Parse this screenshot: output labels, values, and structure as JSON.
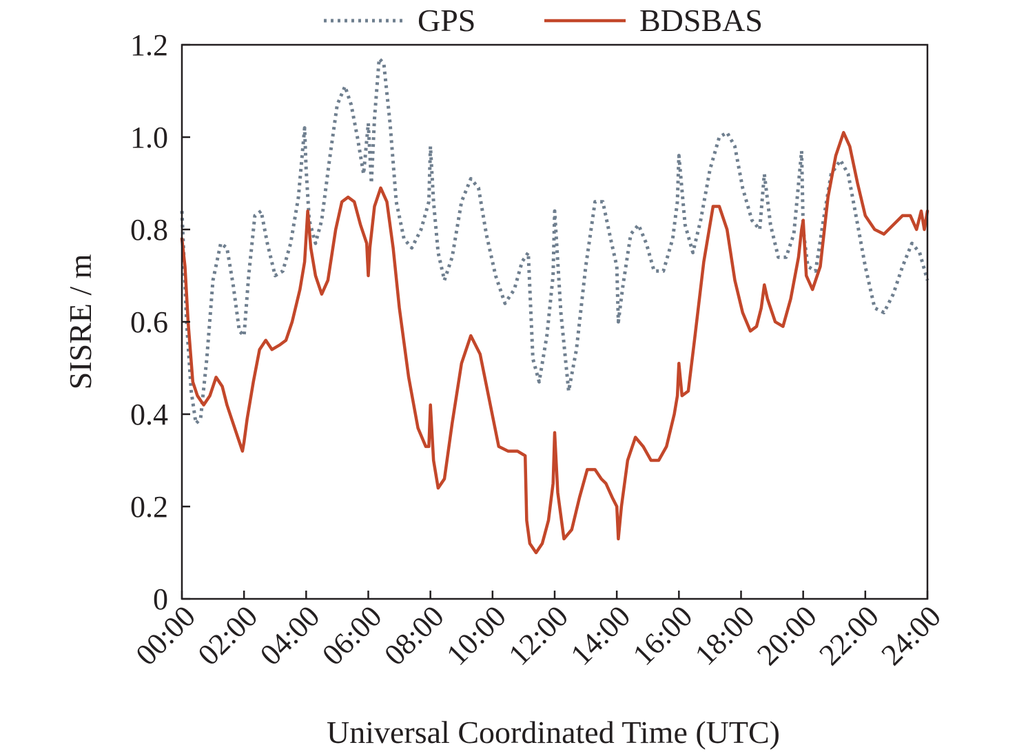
{
  "chart_data": {
    "type": "line",
    "xlabel": "Universal Coordinated Time (UTC)",
    "ylabel": "SISRE / m",
    "xlim": [
      0,
      24
    ],
    "ylim": [
      0,
      1.2
    ],
    "x_ticks": [
      0,
      2,
      4,
      6,
      8,
      10,
      12,
      14,
      16,
      18,
      20,
      22,
      24
    ],
    "x_tick_labels": [
      "00:00",
      "02:00",
      "04:00",
      "06:00",
      "08:00",
      "10:00",
      "12:00",
      "14:00",
      "16:00",
      "18:00",
      "20:00",
      "22:00",
      "24:00"
    ],
    "y_ticks": [
      0,
      0.2,
      0.4,
      0.6,
      0.8,
      1.0,
      1.2
    ],
    "y_tick_labels": [
      "0",
      "0.2",
      "0.4",
      "0.6",
      "0.8",
      "1.0",
      "1.2"
    ],
    "grid": false,
    "legend_position": "top-center",
    "series": [
      {
        "name": "GPS",
        "color": "#6f7f8f",
        "style": "dotted",
        "x": [
          0.0,
          0.15,
          0.3,
          0.45,
          0.6,
          0.8,
          1.0,
          1.25,
          1.45,
          1.65,
          1.85,
          2.0,
          2.15,
          2.35,
          2.55,
          2.75,
          3.0,
          3.25,
          3.5,
          3.75,
          3.95,
          4.0,
          4.1,
          4.3,
          4.5,
          4.75,
          5.0,
          5.25,
          5.45,
          5.65,
          5.85,
          6.0,
          6.1,
          6.2,
          6.35,
          6.5,
          6.7,
          6.9,
          7.15,
          7.4,
          7.7,
          7.95,
          8.0,
          8.1,
          8.25,
          8.45,
          8.7,
          9.0,
          9.3,
          9.55,
          9.8,
          10.1,
          10.4,
          10.7,
          10.95,
          11.15,
          11.3,
          11.5,
          11.75,
          11.95,
          12.0,
          12.2,
          12.45,
          12.7,
          13.0,
          13.3,
          13.55,
          13.8,
          14.0,
          14.05,
          14.2,
          14.45,
          14.7,
          14.95,
          15.2,
          15.5,
          15.8,
          15.95,
          16.0,
          16.2,
          16.45,
          16.7,
          17.0,
          17.3,
          17.55,
          17.8,
          18.05,
          18.35,
          18.6,
          18.75,
          18.95,
          19.2,
          19.45,
          19.7,
          19.95,
          20.0,
          20.15,
          20.4,
          20.65,
          20.9,
          21.2,
          21.45,
          21.7,
          22.0,
          22.3,
          22.6,
          22.9,
          23.2,
          23.5,
          23.75,
          24.0
        ],
        "y": [
          0.84,
          0.6,
          0.45,
          0.38,
          0.39,
          0.52,
          0.69,
          0.77,
          0.76,
          0.68,
          0.58,
          0.57,
          0.7,
          0.83,
          0.84,
          0.77,
          0.7,
          0.71,
          0.77,
          0.87,
          1.02,
          0.93,
          0.82,
          0.77,
          0.82,
          0.95,
          1.07,
          1.11,
          1.07,
          1.0,
          0.92,
          1.03,
          0.9,
          1.04,
          1.17,
          1.16,
          1.03,
          0.86,
          0.78,
          0.76,
          0.8,
          0.86,
          0.98,
          0.86,
          0.75,
          0.69,
          0.74,
          0.86,
          0.91,
          0.89,
          0.79,
          0.7,
          0.64,
          0.67,
          0.73,
          0.75,
          0.52,
          0.47,
          0.57,
          0.7,
          0.84,
          0.62,
          0.45,
          0.54,
          0.72,
          0.86,
          0.86,
          0.78,
          0.72,
          0.6,
          0.68,
          0.79,
          0.81,
          0.77,
          0.71,
          0.71,
          0.78,
          0.86,
          0.96,
          0.81,
          0.75,
          0.82,
          0.93,
          1.0,
          1.01,
          0.98,
          0.89,
          0.82,
          0.8,
          0.92,
          0.81,
          0.74,
          0.74,
          0.79,
          0.97,
          0.8,
          0.72,
          0.71,
          0.82,
          0.92,
          0.95,
          0.92,
          0.83,
          0.72,
          0.63,
          0.62,
          0.66,
          0.72,
          0.77,
          0.75,
          0.69
        ]
      },
      {
        "name": "BDSBAS",
        "color": "#c3472a",
        "style": "solid",
        "x": [
          0.0,
          0.1,
          0.2,
          0.35,
          0.5,
          0.7,
          0.9,
          1.1,
          1.3,
          1.45,
          1.6,
          1.8,
          1.95,
          2.0,
          2.1,
          2.3,
          2.5,
          2.7,
          2.9,
          3.15,
          3.35,
          3.55,
          3.8,
          3.95,
          4.05,
          4.15,
          4.3,
          4.5,
          4.7,
          4.95,
          5.15,
          5.35,
          5.55,
          5.75,
          5.95,
          6.0,
          6.05,
          6.2,
          6.4,
          6.6,
          6.8,
          7.0,
          7.3,
          7.6,
          7.85,
          7.95,
          8.0,
          8.1,
          8.25,
          8.45,
          8.7,
          9.0,
          9.3,
          9.6,
          9.9,
          10.2,
          10.5,
          10.8,
          11.05,
          11.1,
          11.2,
          11.4,
          11.6,
          11.8,
          11.95,
          12.0,
          12.1,
          12.3,
          12.55,
          12.8,
          13.05,
          13.3,
          13.5,
          13.65,
          13.85,
          14.0,
          14.05,
          14.15,
          14.35,
          14.6,
          14.85,
          15.1,
          15.35,
          15.6,
          15.85,
          15.95,
          16.0,
          16.1,
          16.3,
          16.5,
          16.8,
          17.1,
          17.3,
          17.55,
          17.8,
          18.05,
          18.3,
          18.5,
          18.65,
          18.75,
          18.85,
          19.1,
          19.35,
          19.6,
          19.85,
          19.95,
          20.0,
          20.1,
          20.3,
          20.55,
          20.8,
          21.05,
          21.3,
          21.5,
          21.75,
          22.0,
          22.3,
          22.6,
          22.9,
          23.2,
          23.45,
          23.65,
          23.8,
          23.9,
          24.0
        ],
        "y": [
          0.78,
          0.72,
          0.6,
          0.47,
          0.44,
          0.42,
          0.44,
          0.48,
          0.46,
          0.42,
          0.39,
          0.35,
          0.32,
          0.34,
          0.39,
          0.47,
          0.54,
          0.56,
          0.54,
          0.55,
          0.56,
          0.6,
          0.67,
          0.73,
          0.84,
          0.76,
          0.7,
          0.66,
          0.69,
          0.8,
          0.86,
          0.87,
          0.86,
          0.81,
          0.77,
          0.7,
          0.76,
          0.85,
          0.89,
          0.86,
          0.76,
          0.63,
          0.48,
          0.37,
          0.33,
          0.33,
          0.42,
          0.3,
          0.24,
          0.26,
          0.38,
          0.51,
          0.57,
          0.53,
          0.43,
          0.33,
          0.32,
          0.32,
          0.31,
          0.17,
          0.12,
          0.1,
          0.12,
          0.17,
          0.25,
          0.36,
          0.23,
          0.13,
          0.15,
          0.22,
          0.28,
          0.28,
          0.26,
          0.25,
          0.22,
          0.2,
          0.13,
          0.2,
          0.3,
          0.35,
          0.33,
          0.3,
          0.3,
          0.33,
          0.4,
          0.44,
          0.51,
          0.44,
          0.45,
          0.56,
          0.73,
          0.85,
          0.85,
          0.8,
          0.69,
          0.62,
          0.58,
          0.59,
          0.63,
          0.68,
          0.65,
          0.6,
          0.59,
          0.65,
          0.74,
          0.8,
          0.82,
          0.7,
          0.67,
          0.72,
          0.87,
          0.96,
          1.01,
          0.98,
          0.9,
          0.83,
          0.8,
          0.79,
          0.81,
          0.83,
          0.83,
          0.8,
          0.84,
          0.8,
          0.84
        ]
      }
    ]
  }
}
